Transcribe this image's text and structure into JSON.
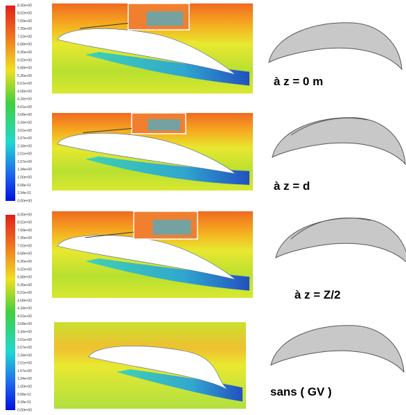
{
  "colorbars": [
    {
      "labels": [
        "8.35e+00",
        "8.02e+00",
        "7.69e+00",
        "7.35e+00",
        "7.02e+00",
        "6.68e+00",
        "6.35e+00",
        "6.02e+00",
        "5.68e+00",
        "5.35e+00",
        "5.01e+00",
        "4.68e+00",
        "4.34e+00",
        "4.01e+00",
        "3.68e+00",
        "3.34e+00",
        "3.01e+00",
        "2.67e+00",
        "2.34e+00",
        "2.01e+00",
        "1.67e+00",
        "1.34e+00",
        "1.00e+00",
        "6.68e-01",
        "3.34e-01",
        "0.00e+00"
      ]
    },
    {
      "labels": [
        "8.35e+00",
        "8.02e+00",
        "7.69e+00",
        "7.35e+00",
        "7.02e+00",
        "6.68e+00",
        "6.35e+00",
        "6.02e+00",
        "5.68e+00",
        "5.35e+00",
        "5.01e+00",
        "4.68e+00",
        "4.34e+00",
        "4.01e+00",
        "3.68e+00",
        "3.34e+00",
        "3.01e+00",
        "2.67e+00",
        "2.34e+00",
        "2.01e+00",
        "1.67e+00",
        "1.34e+00",
        "1.00e+00",
        "6.68e-01",
        "3.34e-01",
        "0.00e+00"
      ]
    }
  ],
  "cases": [
    {
      "label": "à z = 0 m"
    },
    {
      "label": "à z = d"
    },
    {
      "label": "à z = Z/2"
    },
    {
      "label": "sans ( GV )"
    }
  ]
}
